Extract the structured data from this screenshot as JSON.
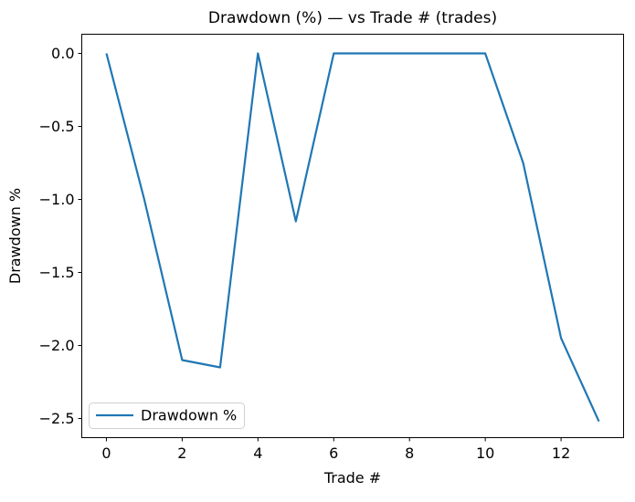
{
  "figure": {
    "background": "#ffffff",
    "spine_color": "#000000"
  },
  "chart_data": {
    "type": "line",
    "title": "Drawdown (%) — vs Trade # (trades)",
    "xlabel": "Trade #",
    "ylabel": "Drawdown %",
    "x": [
      0,
      1,
      2,
      3,
      4,
      5,
      6,
      7,
      8,
      9,
      10,
      11,
      12,
      13
    ],
    "series": [
      {
        "name": "Drawdown %",
        "color": "#1f77b4",
        "values": [
          0.0,
          -1.0,
          -2.1,
          -2.15,
          0.0,
          -1.15,
          0.0,
          0.0,
          0.0,
          0.0,
          0.0,
          -0.75,
          -1.95,
          -2.52
        ]
      }
    ],
    "xlim": [
      -0.65,
      13.65
    ],
    "ylim": [
      -2.63125,
      0.13125
    ],
    "xticks": {
      "values": [
        0,
        2,
        4,
        6,
        8,
        10,
        12
      ],
      "labels": [
        "0",
        "2",
        "4",
        "6",
        "8",
        "10",
        "12"
      ]
    },
    "yticks": {
      "values": [
        0.0,
        -0.5,
        -1.0,
        -1.5,
        -2.0,
        -2.5
      ],
      "labels": [
        "0.0",
        "−0.5",
        "−1.0",
        "−1.5",
        "−2.0",
        "−2.5"
      ]
    },
    "grid": false,
    "legend": {
      "position": "lower left",
      "frame_color": "#d0d0d0",
      "entries": [
        {
          "label": "Drawdown %",
          "color": "#1f77b4"
        }
      ]
    }
  }
}
